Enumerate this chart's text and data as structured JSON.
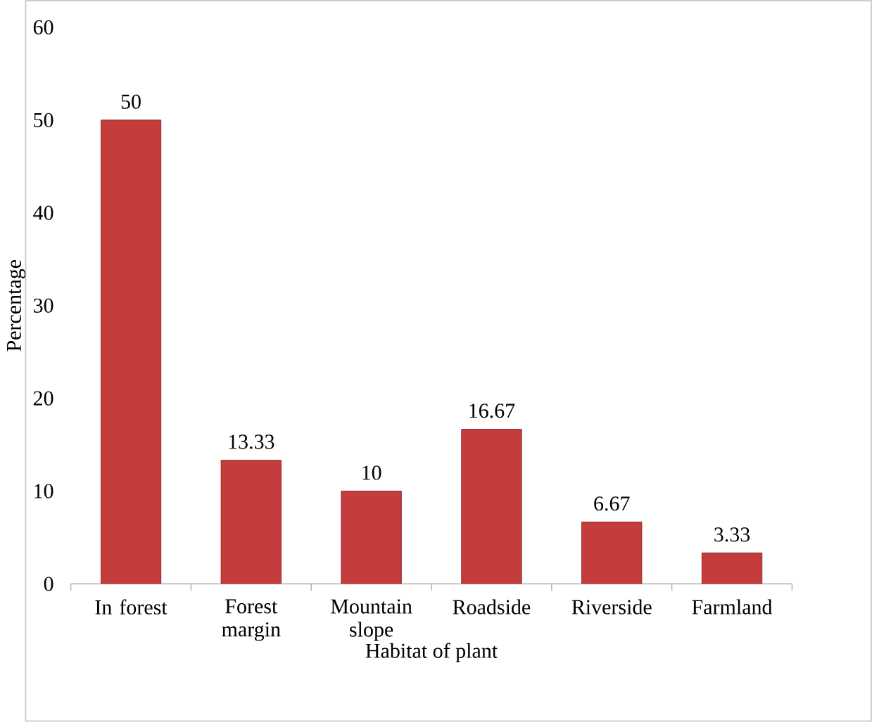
{
  "chart_data": {
    "type": "bar",
    "xlabel": "Habitat of plant",
    "ylabel": "Percentage",
    "categories": [
      "In forest",
      "Forest margin",
      "Mountain slope",
      "Roadside",
      "Riverside",
      "Farmland"
    ],
    "values": [
      50,
      13.33,
      10,
      16.67,
      6.67,
      3.33
    ],
    "color": "#c43c3c",
    "ylim": [
      0,
      60
    ],
    "yticks": [
      0,
      10,
      20,
      30,
      40,
      50,
      60
    ],
    "data_labels": true
  }
}
